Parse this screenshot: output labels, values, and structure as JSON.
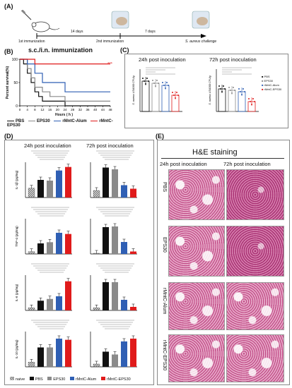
{
  "panelA": {
    "label": "(A)",
    "steps": [
      "1st immunization",
      "2nd immunization",
      "S. aureus challenge"
    ],
    "intervals": [
      "14 days",
      "7 days"
    ]
  },
  "panelB": {
    "label": "(B)",
    "title": "s.c./i.n. immunization",
    "ylabel": "Percent survival(%)",
    "xlabel": "Hours ( h )",
    "yticks": [
      "0",
      "50",
      "100"
    ],
    "xticks": [
      "0",
      "4",
      "8",
      "12",
      "16",
      "20",
      "24",
      "28",
      "32",
      "36",
      "40",
      "44",
      "48"
    ],
    "sig": "***",
    "legend": [
      "PBS",
      "EPS30",
      "rMntC-Alum",
      "rMntC-EPS30"
    ]
  },
  "panelC": {
    "label": "(C)",
    "sub": [
      "24h post inoculation",
      "72h post inoculation"
    ],
    "ylabel": "S. aureus USA300 CFU/g",
    "legend": [
      "PBS",
      "EPS30",
      "rMntC-Alum",
      "rMntC-EPS30"
    ]
  },
  "panelD": {
    "label": "(D)",
    "sub": [
      "24h post inoculation",
      "72h post inoculation"
    ],
    "ylabels": [
      "IL-1β (pg/mg)",
      "TNF-α (pg/mg)",
      "IL-6 (pg/mg)",
      "IL-10 (pg/mg)"
    ],
    "legend": [
      "naive",
      "PBS",
      "EPS30",
      "rMntC-Alum",
      "rMntC-EPS30"
    ]
  },
  "panelE": {
    "label": "(E)",
    "title": "H&E staining",
    "sub": [
      "24h post inoculation",
      "72h post inoculation"
    ],
    "rows": [
      "PBS",
      "EPS30",
      "rMntC-Alum",
      "rMntC-EPS30"
    ]
  },
  "colors": {
    "pbs": "#111111",
    "eps30": "#8a8a8a",
    "alum": "#2f5fb4",
    "eps30mntc": "#e01b1b",
    "naive": "#bdbdbd"
  },
  "chart_data": [
    {
      "type": "line",
      "title": "s.c./i.n. immunization",
      "xlabel": "Hours ( h )",
      "ylabel": "Percent survival(%)",
      "xlim": [
        0,
        48
      ],
      "ylim": [
        0,
        100
      ],
      "series": [
        {
          "name": "PBS",
          "x": [
            0,
            2,
            4,
            6,
            8,
            10,
            12,
            24,
            48
          ],
          "values": [
            100,
            90,
            70,
            50,
            30,
            20,
            10,
            0,
            0
          ]
        },
        {
          "name": "EPS30",
          "x": [
            0,
            4,
            6,
            8,
            12,
            16,
            24,
            48
          ],
          "values": [
            100,
            80,
            60,
            40,
            30,
            20,
            10,
            10
          ]
        },
        {
          "name": "rMntC-Alum",
          "x": [
            0,
            4,
            8,
            12,
            24,
            48
          ],
          "values": [
            100,
            90,
            70,
            50,
            30,
            30
          ]
        },
        {
          "name": "rMntC-EPS30",
          "x": [
            0,
            8,
            48
          ],
          "values": [
            100,
            90,
            90
          ]
        }
      ]
    },
    {
      "type": "scatter",
      "title": "24h post inoculation",
      "categories": [
        "PBS",
        "EPS30",
        "rMntC-Alum",
        "rMntC-EPS30"
      ],
      "values": [
        9.3,
        9.0,
        8.7,
        7.3
      ]
    },
    {
      "type": "scatter",
      "title": "72h post inoculation",
      "categories": [
        "PBS",
        "EPS30",
        "rMntC-Alum",
        "rMntC-EPS30"
      ],
      "values": [
        8.2,
        8.0,
        7.8,
        6.4
      ]
    },
    {
      "type": "bar",
      "title": "24h post inoculation",
      "ylabel": "IL-1β (pg/mg)",
      "categories": [
        "naive",
        "PBS",
        "EPS30",
        "rMntC-Alum",
        "rMntC-EPS30"
      ],
      "values": [
        40,
        75,
        72,
        115,
        130
      ],
      "ylim": [
        0,
        150
      ]
    },
    {
      "type": "bar",
      "title": "72h post inoculation",
      "ylabel": "IL-1β (pg/mg)",
      "categories": [
        "naive",
        "PBS",
        "EPS30",
        "rMntC-Alum",
        "rMntC-EPS30"
      ],
      "values": [
        40,
        170,
        160,
        70,
        50
      ],
      "ylim": [
        0,
        200
      ]
    },
    {
      "type": "bar",
      "title": "24h post inoculation",
      "ylabel": "TNF-α (pg/mg)",
      "categories": [
        "naive",
        "PBS",
        "EPS30",
        "rMntC-Alum",
        "rMntC-EPS30"
      ],
      "values": [
        10,
        45,
        50,
        90,
        85
      ],
      "ylim": [
        0,
        150
      ]
    },
    {
      "type": "bar",
      "title": "72h post inoculation",
      "ylabel": "TNF-α (pg/mg)",
      "categories": [
        "naive",
        "PBS",
        "EPS30",
        "rMntC-Alum",
        "rMntC-EPS30"
      ],
      "values": [
        10,
        380,
        390,
        170,
        35
      ],
      "ylim": [
        0,
        500
      ]
    },
    {
      "type": "bar",
      "title": "24h post inoculation",
      "ylabel": "IL-6 (pg/mg)",
      "categories": [
        "naive",
        "PBS",
        "EPS30",
        "rMntC-Alum",
        "rMntC-EPS30"
      ],
      "values": [
        30,
        110,
        130,
        160,
        330
      ],
      "ylim": [
        0,
        400
      ]
    },
    {
      "type": "bar",
      "title": "72h post inoculation",
      "ylabel": "IL-6 (pg/mg)",
      "categories": [
        "naive",
        "PBS",
        "EPS30",
        "rMntC-Alum",
        "rMntC-EPS30"
      ],
      "values": [
        30,
        320,
        320,
        120,
        40
      ],
      "ylim": [
        0,
        400
      ]
    },
    {
      "type": "bar",
      "title": "24h post inoculation",
      "ylabel": "IL-10 (pg/mg)",
      "categories": [
        "naive",
        "PBS",
        "EPS30",
        "rMntC-Alum",
        "rMntC-EPS30"
      ],
      "values": [
        80,
        330,
        330,
        480,
        460
      ],
      "ylim": [
        0,
        600
      ]
    },
    {
      "type": "bar",
      "title": "72h post inoculation",
      "ylabel": "IL-10 (pg/mg)",
      "categories": [
        "naive",
        "PBS",
        "EPS30",
        "rMntC-Alum",
        "rMntC-EPS30"
      ],
      "values": [
        80,
        430,
        350,
        720,
        800
      ],
      "ylim": [
        0,
        1000
      ]
    }
  ]
}
